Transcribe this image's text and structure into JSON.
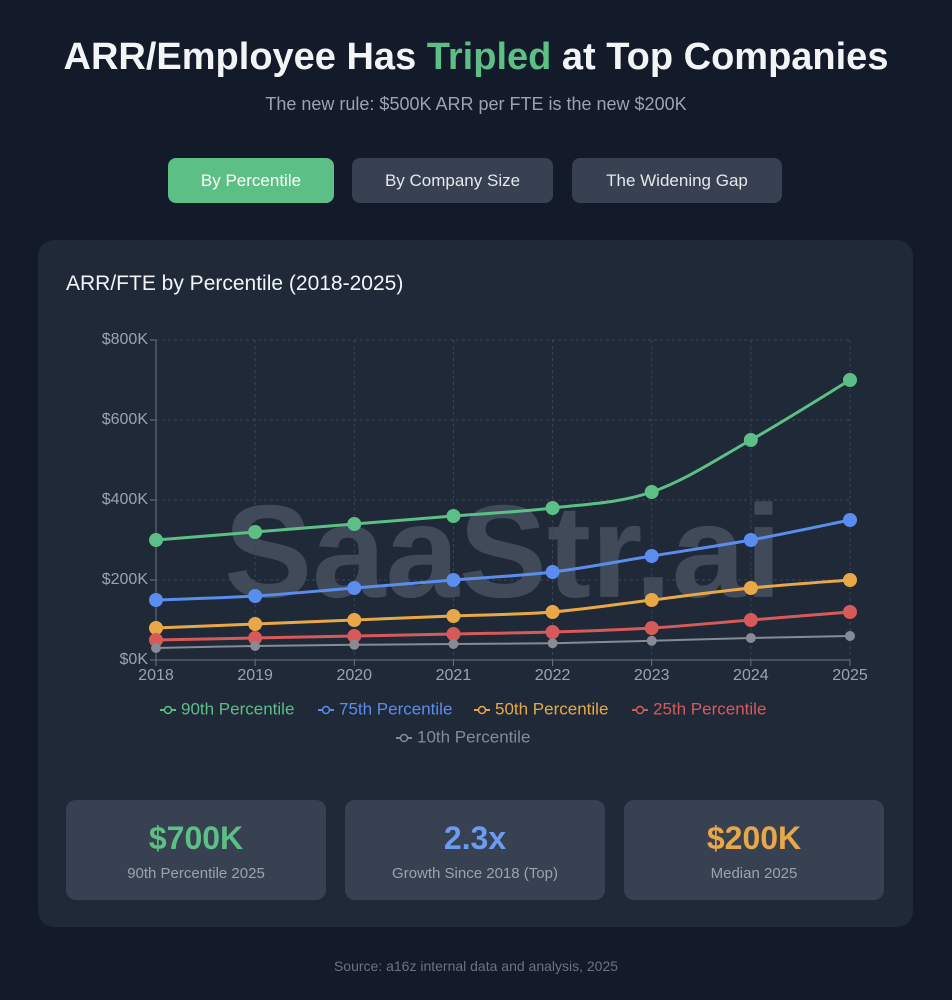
{
  "header": {
    "title": [
      "ARR/Employee Has",
      "Tripled",
      "at Top Companies"
    ],
    "subtitle": "The new rule: $500K ARR per FTE is the new $200K"
  },
  "tabs": [
    "By Percentile",
    "By Company Size",
    "The Widening Gap"
  ],
  "chart_data": {
    "type": "line",
    "title": "ARR/FTE by Percentile (2018-2025)",
    "watermark": "SaaStr.ai",
    "categories": [
      "2018",
      "2019",
      "2020",
      "2021",
      "2022",
      "2023",
      "2024",
      "2025"
    ],
    "series": [
      {
        "name": "90th Percentile",
        "color": "#5cbf85",
        "values": [
          300000,
          320000,
          340000,
          360000,
          380000,
          420000,
          550000,
          700000
        ]
      },
      {
        "name": "75th Percentile",
        "color": "#5b8def",
        "values": [
          150000,
          160000,
          180000,
          200000,
          220000,
          260000,
          300000,
          350000
        ]
      },
      {
        "name": "50th Percentile",
        "color": "#e9a847",
        "values": [
          80000,
          90000,
          100000,
          110000,
          120000,
          150000,
          180000,
          200000
        ]
      },
      {
        "name": "25th Percentile",
        "color": "#d65a5a",
        "values": [
          50000,
          55000,
          60000,
          65000,
          70000,
          80000,
          100000,
          120000
        ]
      },
      {
        "name": "10th Percentile",
        "color": "#868b95",
        "values": [
          30000,
          35000,
          38000,
          40000,
          42000,
          48000,
          55000,
          60000
        ]
      }
    ],
    "ylim": [
      0,
      800000
    ],
    "yticks": [
      {
        "value": 0,
        "label": "$0K"
      },
      {
        "value": 200000,
        "label": "$200K"
      },
      {
        "value": 400000,
        "label": "$400K"
      },
      {
        "value": 600000,
        "label": "$600K"
      },
      {
        "value": 800000,
        "label": "$800K"
      }
    ],
    "grid": true,
    "legend": "bottom"
  },
  "stats": [
    {
      "value": "$700K",
      "label": "90th Percentile 2025"
    },
    {
      "value": "2.3x",
      "label": "Growth Since 2018 (Top)"
    },
    {
      "value": "$200K",
      "label": "Median 2025"
    }
  ],
  "source": "Source: a16z internal data and analysis, 2025"
}
